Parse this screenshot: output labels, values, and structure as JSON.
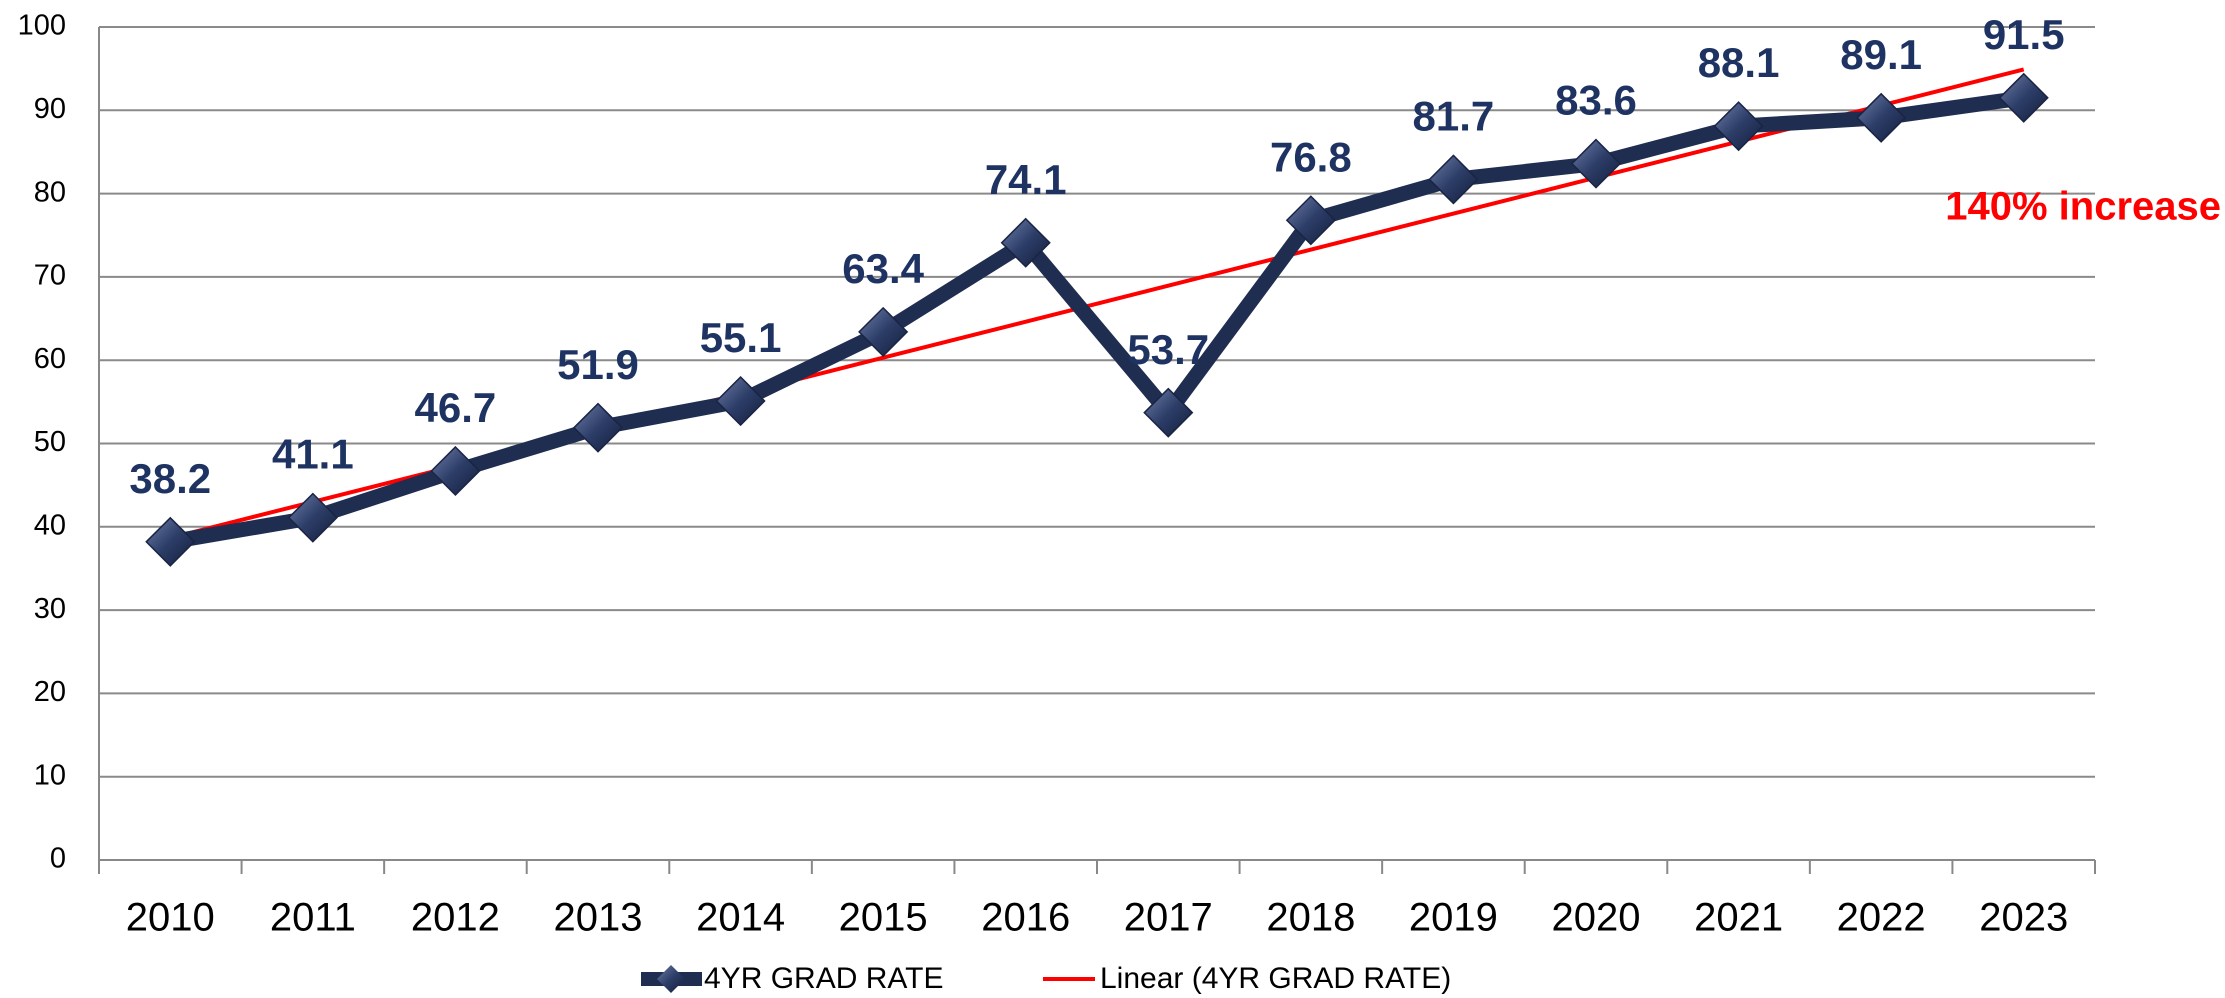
{
  "chart_data": {
    "type": "line",
    "categories": [
      "2010",
      "2011",
      "2012",
      "2013",
      "2014",
      "2015",
      "2016",
      "2017",
      "2018",
      "2019",
      "2020",
      "2021",
      "2022",
      "2023"
    ],
    "series": [
      {
        "name": "4YR GRAD RATE",
        "color": "#1f2d50",
        "values": [
          38.2,
          41.1,
          46.7,
          51.9,
          55.1,
          63.4,
          74.1,
          53.7,
          76.8,
          81.7,
          83.6,
          88.1,
          89.1,
          91.5
        ],
        "value_labels": [
          "38.2",
          "41.1",
          "46.7",
          "51.9",
          "55.1",
          "63.4",
          "74.1",
          "53.7",
          "76.8",
          "81.7",
          "83.6",
          "88.1",
          "89.1",
          "91.5"
        ]
      }
    ],
    "trendline": {
      "name": "Linear (4YR GRAD RATE)",
      "color": "#ff0000"
    },
    "annotation": "140% increase",
    "ylim": [
      0,
      100
    ],
    "yticks": [
      0,
      10,
      20,
      30,
      40,
      50,
      60,
      70,
      80,
      90,
      100
    ],
    "grid": true
  }
}
